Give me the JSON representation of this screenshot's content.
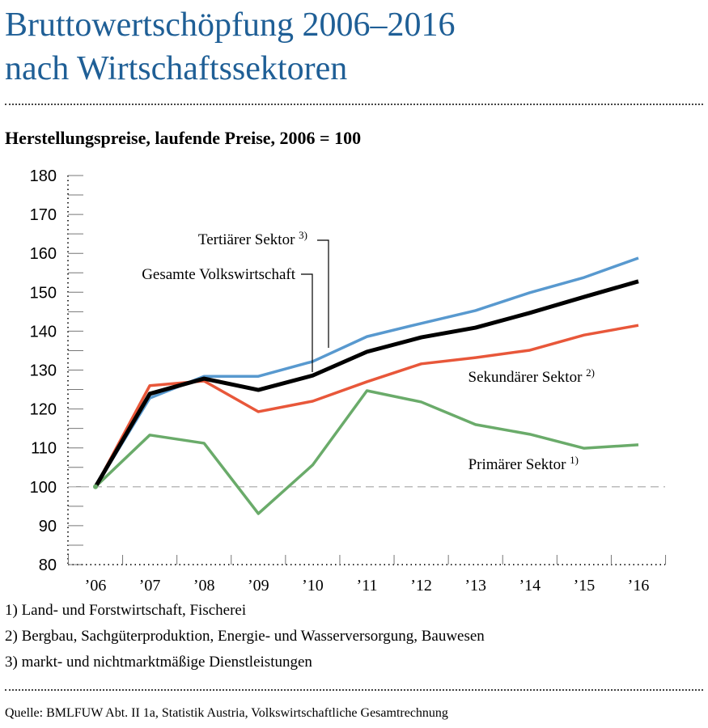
{
  "title_line1": "Bruttowertschöpfung 2006–2016",
  "title_line2": "nach Wirtschaftssektoren",
  "subtitle": "Herstellungspreise, laufende Preise, 2006 = 100",
  "chart_data": {
    "type": "line",
    "title": "Bruttowertschöpfung 2006–2016 nach Wirtschaftssektoren",
    "categories": [
      "’06",
      "’07",
      "’08",
      "’09",
      "’10",
      "’11",
      "’12",
      "’13",
      "’14",
      "’15",
      "’16"
    ],
    "ylim": [
      80,
      180
    ],
    "yticks": [
      80,
      90,
      100,
      110,
      120,
      130,
      140,
      150,
      160,
      170,
      180
    ],
    "reference_line": 100,
    "series": [
      {
        "name": "Tertiärer Sektor",
        "sup": "3)",
        "color": "#5899cf",
        "values": [
          100,
          122.8,
          128.4,
          128.4,
          132.2,
          138.6,
          142,
          145.3,
          149.9,
          153.8,
          158.8
        ]
      },
      {
        "name": "Gesamte Volkswirtschaft",
        "sup": "",
        "color": "#000000",
        "values": [
          100,
          123.9,
          127.8,
          124.9,
          128.6,
          134.7,
          138.4,
          140.9,
          144.7,
          148.8,
          152.8
        ]
      },
      {
        "name": "Sekundärer Sektor",
        "sup": "2)",
        "color": "#e8573a",
        "values": [
          100,
          126,
          127.2,
          119.3,
          122,
          127,
          131.6,
          133.2,
          135.1,
          139,
          141.5
        ]
      },
      {
        "name": "Primärer Sektor",
        "sup": "1)",
        "color": "#6aab6a",
        "values": [
          100,
          113.3,
          111.2,
          93.1,
          105.6,
          124.7,
          121.8,
          116,
          113.5,
          109.9,
          110.8
        ]
      }
    ]
  },
  "footnotes": [
    "1) Land- und Forstwirtschaft, Fischerei",
    "2) Bergbau, Sachgüterproduktion, Energie- und Wasserversorgung, Bauwesen",
    "3) markt- und nichtmarktmäßige Dienstleistungen"
  ],
  "source": "Quelle: BMLFUW Abt. II 1a, Statistik Austria, Volkswirtschaftliche Gesamtrechnung"
}
